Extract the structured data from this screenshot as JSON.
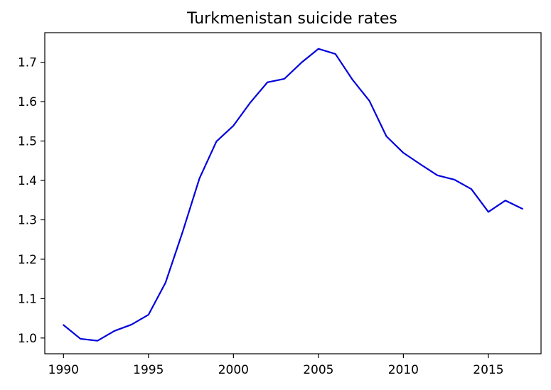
{
  "chart_data": {
    "type": "line",
    "title": "Turkmenistan suicide rates",
    "xlabel": "",
    "ylabel": "",
    "xlim": [
      1988.9,
      2018.1
    ],
    "ylim": [
      0.96,
      1.775
    ],
    "x_ticks": [
      1990,
      1995,
      2000,
      2005,
      2010,
      2015
    ],
    "y_ticks": [
      1.0,
      1.1,
      1.2,
      1.3,
      1.4,
      1.5,
      1.6,
      1.7
    ],
    "x_tick_labels": [
      "1990",
      "1995",
      "2000",
      "2005",
      "2010",
      "2015"
    ],
    "y_tick_labels": [
      "1.0",
      "1.1",
      "1.2",
      "1.3",
      "1.4",
      "1.5",
      "1.6",
      "1.7"
    ],
    "grid": false,
    "series": [
      {
        "color": "#0000dd",
        "x": [
          1990,
          1991,
          1992,
          1993,
          1994,
          1995,
          1996,
          1997,
          1998,
          1999,
          2000,
          2001,
          2002,
          2003,
          2004,
          2005,
          2006,
          2007,
          2008,
          2009,
          2010,
          2011,
          2012,
          2013,
          2014,
          2015,
          2016,
          2017
        ],
        "values": [
          1.033,
          0.998,
          0.993,
          1.018,
          1.034,
          1.059,
          1.14,
          1.268,
          1.405,
          1.499,
          1.539,
          1.598,
          1.649,
          1.658,
          1.699,
          1.734,
          1.721,
          1.656,
          1.602,
          1.512,
          1.47,
          1.441,
          1.413,
          1.402,
          1.378,
          1.32,
          1.349,
          1.328
        ]
      }
    ]
  }
}
